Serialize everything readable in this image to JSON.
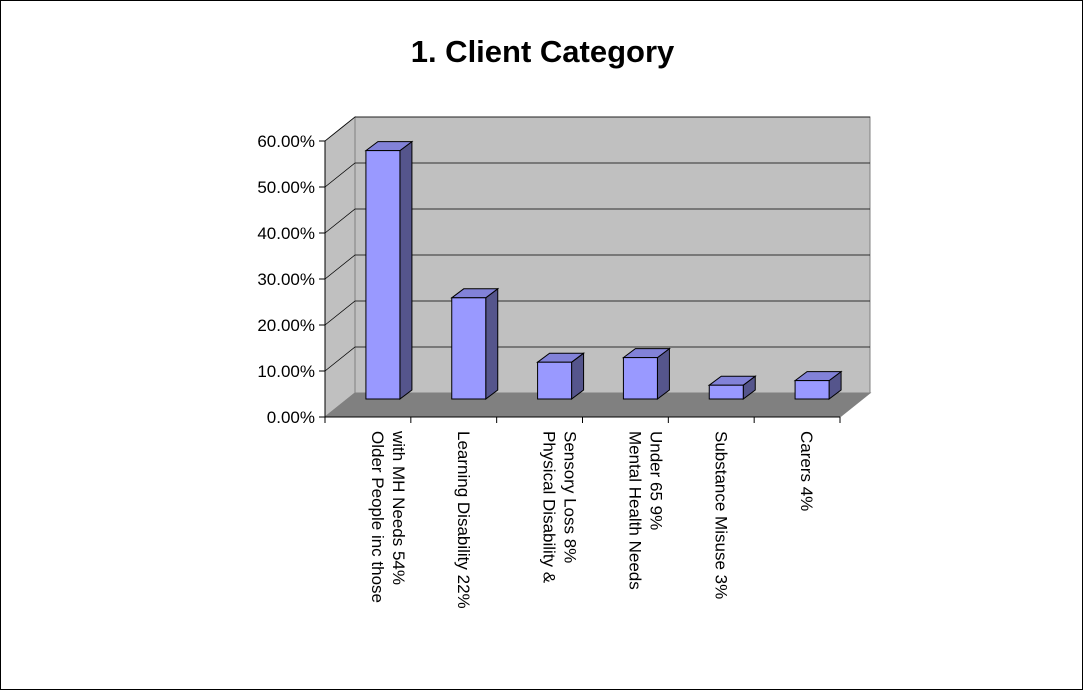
{
  "chart_data": {
    "type": "bar",
    "title": "1.  Client Category",
    "categories": [
      [
        "Older People inc those",
        "with MH Needs 54%"
      ],
      [
        "Learning Disability 22%"
      ],
      [
        "Physical Disability &",
        "Sensory Loss 8%"
      ],
      [
        "Mental Health Needs",
        "Under 65 9%"
      ],
      [
        "Substance Misuse 3%"
      ],
      [
        "Carers 4%"
      ]
    ],
    "values": [
      0.54,
      0.22,
      0.08,
      0.09,
      0.03,
      0.04
    ],
    "y_ticks": [
      "0.00%",
      "10.00%",
      "20.00%",
      "30.00%",
      "40.00%",
      "50.00%",
      "60.00%"
    ],
    "ylim": [
      0,
      0.6
    ],
    "grid": true,
    "legend": "none",
    "colors": {
      "bar_front": "#9999ff",
      "bar_side": "#55558c",
      "bar_top": "#8282d8",
      "wall": "#c0c0c0",
      "floor": "#808080",
      "grid": "#000000"
    }
  }
}
